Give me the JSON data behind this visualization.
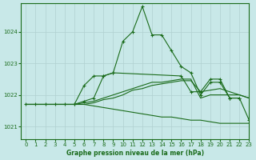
{
  "bg_color": "#c8e8e8",
  "grid_color": "#b0d0d0",
  "line_color": "#1a6b1a",
  "xlabel": "Graphe pression niveau de la mer (hPa)",
  "ylim": [
    1020.6,
    1024.9
  ],
  "xlim": [
    -0.5,
    23
  ],
  "yticks": [
    1021,
    1022,
    1023,
    1024
  ],
  "xticks": [
    0,
    1,
    2,
    3,
    4,
    5,
    6,
    7,
    8,
    9,
    10,
    11,
    12,
    13,
    14,
    15,
    16,
    17,
    18,
    19,
    20,
    21,
    22,
    23
  ],
  "series": [
    {
      "x": [
        0,
        1,
        2,
        3,
        4,
        5,
        6,
        7,
        8,
        9,
        10,
        11,
        12,
        13,
        14,
        15,
        16,
        17,
        18,
        19,
        20,
        21,
        22,
        23
      ],
      "y": [
        1021.7,
        1021.7,
        1021.7,
        1021.7,
        1021.7,
        1021.7,
        1021.8,
        1021.9,
        1022.6,
        1022.7,
        1023.7,
        1024.0,
        1024.8,
        1023.9,
        1023.9,
        1023.4,
        1022.9,
        1022.7,
        1022.0,
        1022.4,
        1022.4,
        1021.9,
        1021.9,
        1021.2
      ],
      "marker": "+"
    },
    {
      "x": [
        5,
        6,
        7,
        8,
        9,
        16,
        17,
        18,
        19,
        20,
        21,
        22
      ],
      "y": [
        1021.7,
        1022.3,
        1022.6,
        1022.6,
        1022.7,
        1022.6,
        1022.1,
        1022.1,
        1022.5,
        1022.5,
        1021.9,
        1021.9
      ],
      "marker": "+"
    },
    {
      "x": [
        0,
        1,
        2,
        3,
        4,
        5,
        6,
        7,
        8,
        9,
        10,
        11,
        12,
        13,
        14,
        15,
        16,
        17,
        18,
        19,
        20,
        21,
        22,
        23
      ],
      "y": [
        1021.7,
        1021.7,
        1021.7,
        1021.7,
        1021.7,
        1021.7,
        1021.7,
        1021.65,
        1021.6,
        1021.55,
        1021.5,
        1021.45,
        1021.4,
        1021.35,
        1021.3,
        1021.3,
        1021.25,
        1021.2,
        1021.2,
        1021.15,
        1021.1,
        1021.1,
        1021.1,
        1021.1
      ],
      "marker": null
    },
    {
      "x": [
        0,
        1,
        2,
        3,
        4,
        5,
        6,
        7,
        8,
        9,
        10,
        11,
        12,
        13,
        14,
        15,
        16,
        17,
        18,
        19,
        20,
        21,
        22,
        23
      ],
      "y": [
        1021.7,
        1021.7,
        1021.7,
        1021.7,
        1021.7,
        1021.7,
        1021.75,
        1021.8,
        1021.9,
        1022.0,
        1022.1,
        1022.2,
        1022.3,
        1022.4,
        1022.4,
        1022.45,
        1022.5,
        1022.5,
        1021.9,
        1022.0,
        1022.0,
        1022.0,
        1022.0,
        1021.9
      ],
      "marker": null
    },
    {
      "x": [
        0,
        1,
        2,
        3,
        4,
        5,
        6,
        7,
        8,
        9,
        10,
        11,
        12,
        13,
        14,
        15,
        16,
        17,
        18,
        19,
        20,
        21,
        22,
        23
      ],
      "y": [
        1021.7,
        1021.7,
        1021.7,
        1021.7,
        1021.7,
        1021.7,
        1021.7,
        1021.75,
        1021.85,
        1021.9,
        1022.0,
        1022.15,
        1022.2,
        1022.3,
        1022.35,
        1022.4,
        1022.45,
        1022.45,
        1022.1,
        1022.15,
        1022.2,
        1022.1,
        1022.0,
        1021.9
      ],
      "marker": null
    }
  ]
}
